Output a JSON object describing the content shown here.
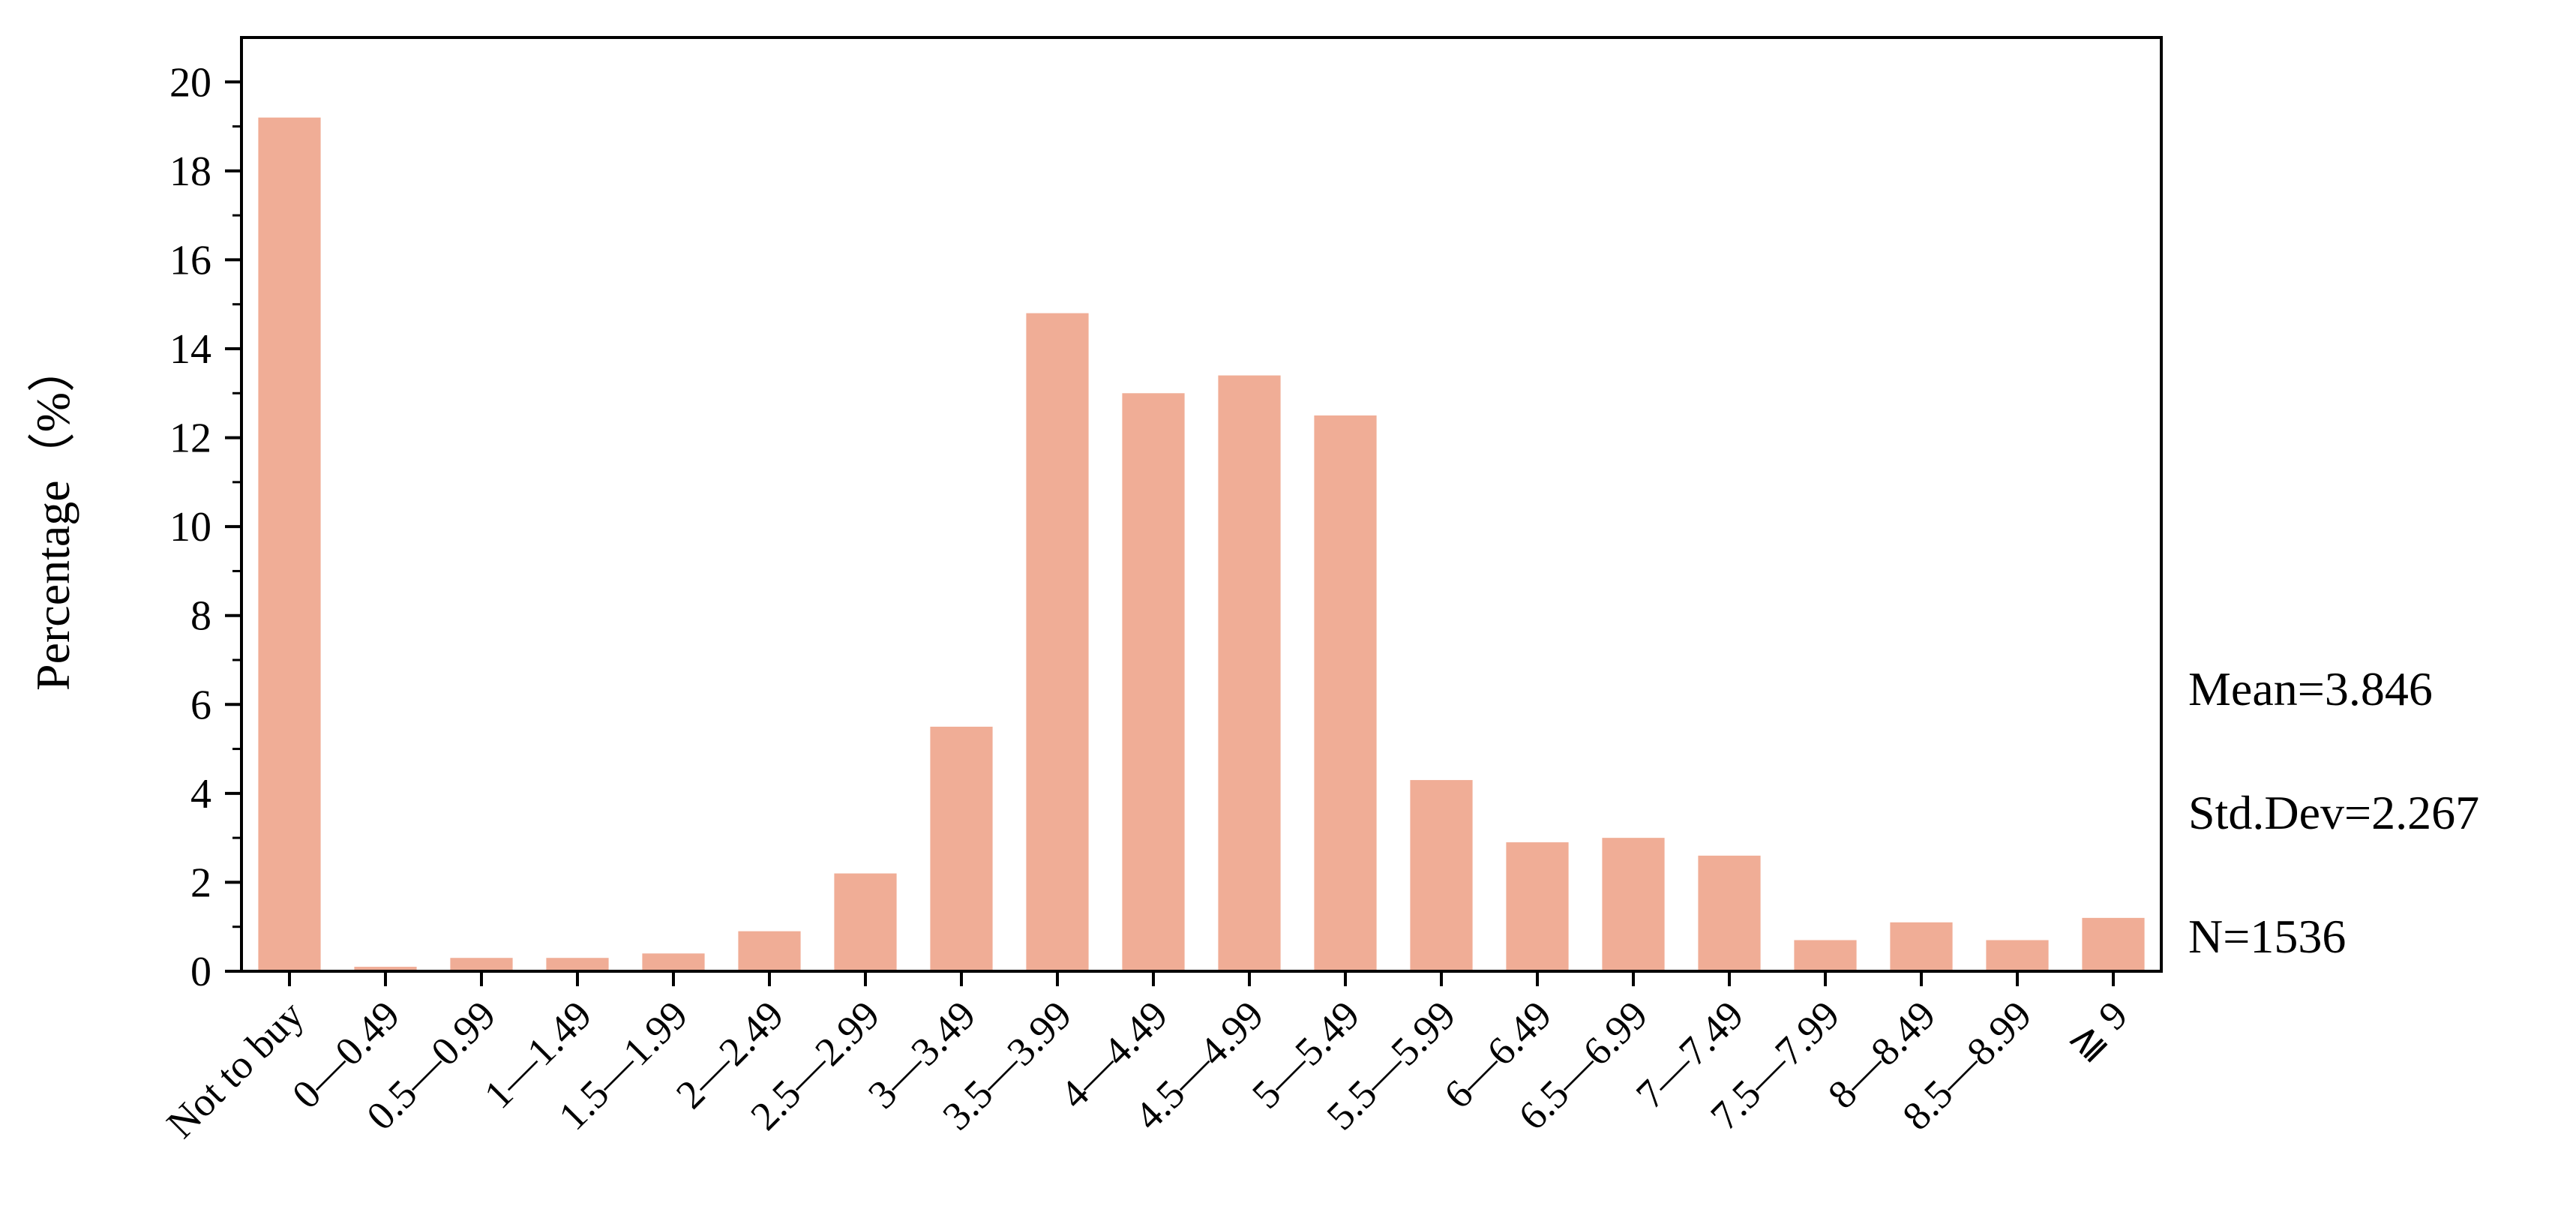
{
  "chart_data": {
    "type": "bar",
    "title": "",
    "xlabel": "",
    "ylabel": "Percentage（%）",
    "ylim": [
      0,
      21
    ],
    "yticks": [
      0,
      2,
      4,
      6,
      8,
      10,
      12,
      14,
      16,
      18,
      20
    ],
    "grid": false,
    "bar_color": "#f0ad96",
    "categories": [
      "Not to buy",
      "0—0.49",
      "0.5—0.99",
      "1—1.49",
      "1.5—1.99",
      "2—2.49",
      "2.5—2.99",
      "3—3.49",
      "3.5—3.99",
      "4—4.49",
      "4.5—4.99",
      "5—5.49",
      "5.5—5.99",
      "6—6.49",
      "6.5—6.99",
      "7—7.49",
      "7.5—7.99",
      "8—8.49",
      "8.5—8.99",
      "≧ 9"
    ],
    "values": [
      19.2,
      0.1,
      0.3,
      0.3,
      0.4,
      0.9,
      2.2,
      5.5,
      14.8,
      13.0,
      13.4,
      12.5,
      4.3,
      2.9,
      3.0,
      2.6,
      0.7,
      1.1,
      0.7,
      1.2
    ],
    "annotations": [
      "Mean=3.846",
      "Std.Dev=2.267",
      "N=1536"
    ]
  }
}
